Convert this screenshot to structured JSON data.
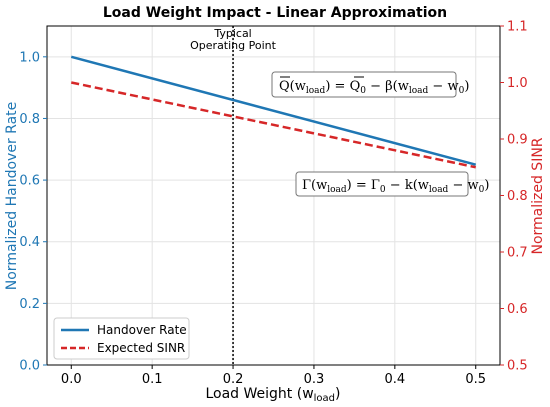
{
  "chart_data": {
    "type": "line",
    "title": "Load Weight Impact - Linear Approximation",
    "xlabel": "Load Weight (w",
    "xlabel_sub": "load",
    "xlabel_close": ")",
    "ylabel_left": "Normalized Handover Rate",
    "ylabel_right": "Normalized SINR",
    "xlim": [
      -0.03,
      0.53
    ],
    "ylim_left": [
      0.0,
      1.1
    ],
    "ylim_right": [
      0.5,
      1.1
    ],
    "x_ticks": [
      "0.0",
      "0.1",
      "0.2",
      "0.3",
      "0.4",
      "0.5"
    ],
    "y_left_ticks": [
      "0.0",
      "0.2",
      "0.4",
      "0.6",
      "0.8",
      "1.0"
    ],
    "y_right_ticks": [
      "0.5",
      "0.6",
      "0.7",
      "0.8",
      "0.9",
      "1.0",
      "1.1"
    ],
    "grid": true,
    "legend_position": "bottom-left",
    "series": [
      {
        "name": "Handover Rate",
        "axis": "left",
        "color": "#1f77b4",
        "style": "solid",
        "x": [
          0.0,
          0.5
        ],
        "y": [
          1.0,
          0.65
        ]
      },
      {
        "name": "Expected SINR",
        "axis": "right",
        "color": "#d62728",
        "style": "dashed",
        "x": [
          0.0,
          0.5
        ],
        "y": [
          1.0,
          0.85
        ]
      }
    ],
    "vline": {
      "x": 0.2,
      "label_line1": "Typical",
      "label_line2": "Operating Point"
    },
    "annotations": {
      "eq1": {
        "lhs": "Q",
        "arg": "load",
        "mid": " = ",
        "q0": "Q",
        "q0sub": "0",
        "rest": " − β(w",
        "rest_sub": "load",
        "rest2": " − w",
        "rest2_sub": "0",
        "close": ")"
      },
      "eq2": {
        "lhs": "Γ(w",
        "lhs_sub": "load",
        "mid": ") = Γ",
        "g0sub": "0",
        "rest": " − k(w",
        "rest_sub": "load",
        "rest2": " − w",
        "rest2_sub": "0",
        "close": ")"
      }
    }
  }
}
